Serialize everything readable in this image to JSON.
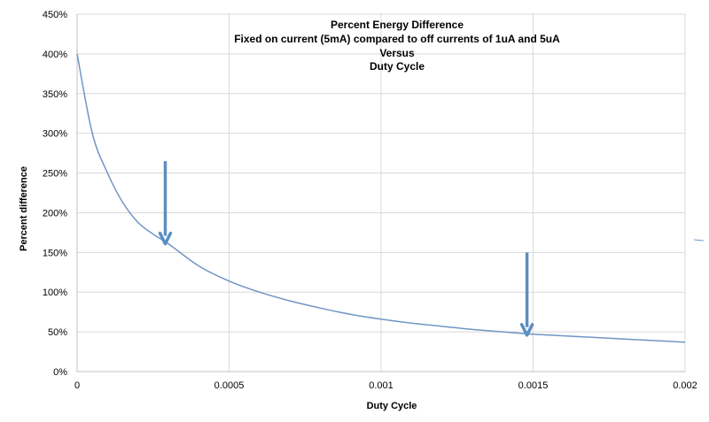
{
  "chart_data": {
    "type": "line",
    "title_lines": [
      "Percent Energy Difference",
      "Fixed on current (5mA) compared to off currents of 1uA and 5uA",
      "Versus",
      "Duty Cycle"
    ],
    "xlabel": "Duty Cycle",
    "ylabel": "Percent difference",
    "xlim": [
      0,
      0.002
    ],
    "ylim": [
      0,
      4.5
    ],
    "x_ticks": [
      0,
      0.0005,
      0.001,
      0.0015,
      0.002
    ],
    "x_tick_labels": [
      "0",
      "0.0005",
      "0.001",
      "0.0015",
      "0.002"
    ],
    "y_ticks": [
      0,
      0.5,
      1.0,
      1.5,
      2.0,
      2.5,
      3.0,
      3.5,
      4.0,
      4.5
    ],
    "y_tick_labels": [
      "0%",
      "50%",
      "100%",
      "150%",
      "200%",
      "250%",
      "300%",
      "350%",
      "400%",
      "450%"
    ],
    "grid": true,
    "legend": "none",
    "series": [
      {
        "color": "#6f96c4",
        "x": [
          0,
          5e-05,
          0.0001,
          0.00015,
          0.0002,
          0.00025,
          0.0003,
          0.0004,
          0.0005,
          0.0006,
          0.0007,
          0.0008,
          0.0009,
          0.001,
          0.0011,
          0.0012,
          0.0013,
          0.0014,
          0.0015,
          0.0016,
          0.0017,
          0.0018,
          0.0019,
          0.002
        ],
        "y": [
          4.0,
          3.0,
          2.5,
          2.13,
          1.88,
          1.73,
          1.61,
          1.33,
          1.14,
          1.0,
          0.89,
          0.8,
          0.72,
          0.66,
          0.61,
          0.57,
          0.53,
          0.5,
          0.47,
          0.45,
          0.43,
          0.41,
          0.39,
          0.37
        ]
      }
    ],
    "annotations": [
      {
        "type": "arrow",
        "x": 0.00029,
        "y_from": 2.65,
        "y_to": 1.62,
        "color": "#5b8fbf"
      },
      {
        "type": "arrow",
        "x": 0.00148,
        "y_from": 1.5,
        "y_to": 0.47,
        "color": "#5b8fbf"
      }
    ]
  }
}
